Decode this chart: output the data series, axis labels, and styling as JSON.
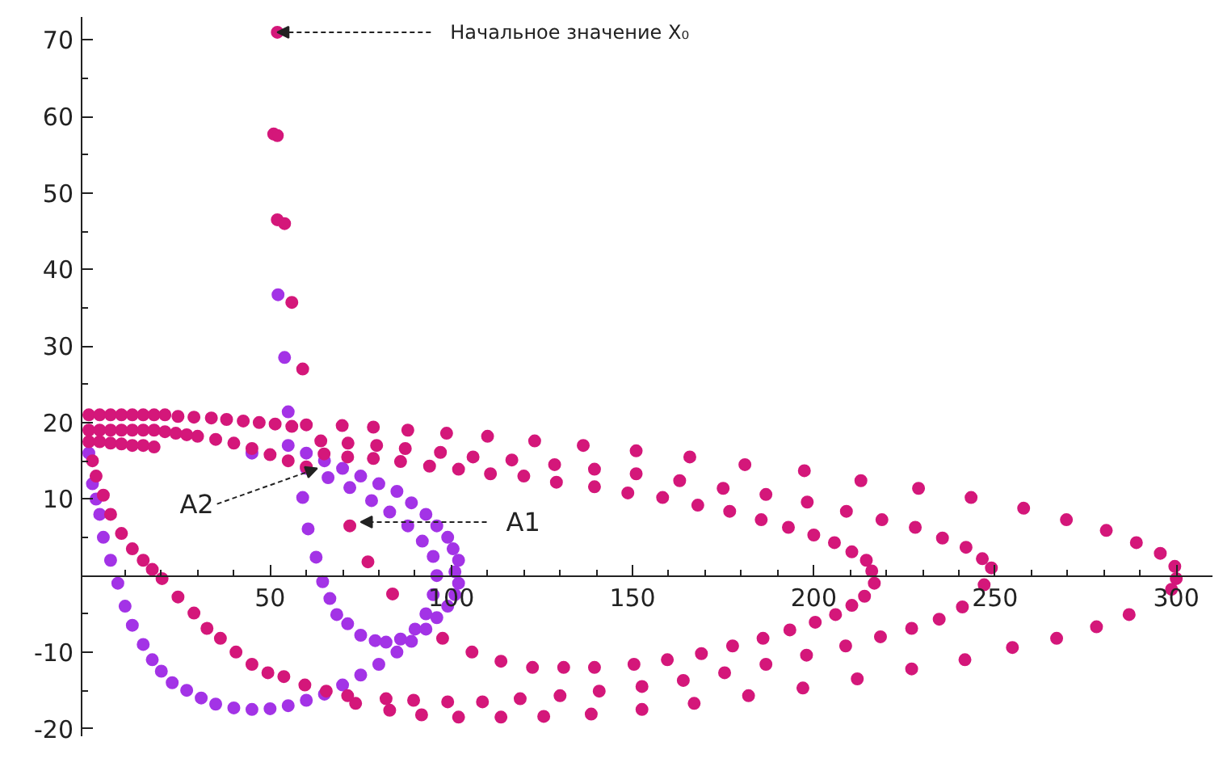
{
  "chart_data": {
    "type": "scatter",
    "marker": "circle",
    "grid": false,
    "xlim": [
      -2,
      310
    ],
    "ylim": [
      -21,
      73
    ],
    "xticks": [
      {
        "value": 10,
        "label": null
      },
      {
        "value": 20,
        "label": null
      },
      {
        "value": 30,
        "label": null
      },
      {
        "value": 40,
        "label": null
      },
      50,
      {
        "value": 60,
        "label": null
      },
      {
        "value": 70,
        "label": null
      },
      {
        "value": 80,
        "label": null
      },
      {
        "value": 90,
        "label": null
      },
      100,
      {
        "value": 110,
        "label": null
      },
      {
        "value": 120,
        "label": null
      },
      {
        "value": 130,
        "label": null
      },
      {
        "value": 140,
        "label": null
      },
      150,
      {
        "value": 160,
        "label": null
      },
      {
        "value": 170,
        "label": null
      },
      {
        "value": 180,
        "label": null
      },
      {
        "value": 190,
        "label": null
      },
      200,
      {
        "value": 210,
        "label": null
      },
      {
        "value": 220,
        "label": null
      },
      {
        "value": 230,
        "label": null
      },
      {
        "value": 240,
        "label": null
      },
      250,
      {
        "value": 260,
        "label": null
      },
      {
        "value": 270,
        "label": null
      },
      {
        "value": 280,
        "label": null
      },
      {
        "value": 290,
        "label": null
      },
      300
    ],
    "yticks": [
      -20,
      {
        "value": -15,
        "label": null
      },
      -10,
      {
        "value": -5,
        "label": null
      },
      {
        "value": 5,
        "label": null
      },
      10,
      {
        "value": 15,
        "label": null
      },
      20,
      {
        "value": 25,
        "label": null
      },
      30,
      {
        "value": 35,
        "label": null
      },
      40,
      {
        "value": 45,
        "label": null
      },
      50,
      {
        "value": 55,
        "label": null
      },
      60,
      {
        "value": 65,
        "label": null
      },
      70
    ],
    "series": [
      {
        "color": "#a333e6",
        "x": [
          52.2,
          54,
          55,
          59,
          60.5,
          62.7,
          64.5,
          66.5,
          68.4,
          71.4,
          75,
          79,
          82,
          86,
          90,
          93,
          95,
          96,
          95,
          92,
          88,
          83,
          78,
          72,
          66,
          60,
          0,
          2,
          1,
          4,
          3,
          8,
          6,
          12,
          10,
          17.5,
          15,
          23,
          20,
          31,
          27,
          40,
          35,
          50,
          45,
          60,
          55,
          70,
          65,
          80,
          75,
          89,
          85,
          96,
          93,
          101,
          99,
          102,
          101,
          102,
          100.5,
          99,
          96,
          93,
          89,
          85,
          80,
          75,
          70,
          65,
          60,
          55,
          45
        ],
        "values": [
          36.7,
          28.5,
          21.4,
          10.2,
          6.1,
          2.4,
          -0.8,
          -3,
          -5.1,
          -6.3,
          -7.8,
          -8.5,
          -8.7,
          -8.3,
          -7,
          -5,
          -2.5,
          0,
          2.5,
          4.5,
          6.5,
          8.3,
          9.8,
          11.5,
          12.8,
          14,
          16,
          10,
          12,
          5,
          8,
          -1,
          2,
          -6.5,
          -4,
          -11,
          -9,
          -14,
          -12.5,
          -16,
          -15,
          -17.3,
          -16.8,
          -17.4,
          -17.5,
          -16.3,
          -17,
          -14.3,
          -15.5,
          -11.6,
          -13,
          -8.6,
          -10,
          -5.5,
          -7,
          -2.5,
          -4,
          -1,
          0.5,
          2,
          3.5,
          5,
          6.5,
          8,
          9.5,
          11,
          12,
          13,
          14,
          15,
          16,
          17,
          16
        ]
      },
      {
        "color": "#d4177a",
        "x": [
          52,
          51,
          52,
          52,
          54,
          56,
          59,
          0,
          3,
          6,
          9,
          12,
          15,
          18,
          21,
          24.6,
          29,
          33.8,
          38,
          42.6,
          47,
          51.4,
          56,
          60,
          69.9,
          78.5,
          88,
          98.7,
          110,
          123,
          136.4,
          151,
          165.8,
          181,
          197.4,
          213,
          228.9,
          243.4,
          257.9,
          269.7,
          280.7,
          289,
          295.6,
          299.6,
          300,
          298.7,
          287,
          278,
          267,
          254.8,
          241.7,
          227,
          212,
          197,
          182,
          167,
          152.6,
          138.6,
          125.5,
          113.7,
          102,
          91.8,
          83,
          73.6,
          0,
          3,
          6,
          9,
          12,
          15,
          18,
          21,
          24,
          27,
          30,
          64,
          71.5,
          79.4,
          87.3,
          97,
          106,
          116.7,
          128.5,
          139.5,
          151,
          163,
          175,
          186.8,
          198.2,
          209,
          218.8,
          228,
          235.5,
          242,
          246.5,
          249,
          247,
          241,
          234.6,
          227,
          218.4,
          208.8,
          198,
          186.8,
          175.4,
          164,
          152.6,
          140.8,
          130,
          119,
          108.6,
          99,
          89.6,
          82,
          0,
          3,
          6,
          9,
          12,
          15,
          18,
          64.9,
          71.4,
          78.5,
          86,
          94,
          102,
          110.8,
          120,
          129,
          139.5,
          148.7,
          158.3,
          168,
          176.8,
          185.5,
          193,
          200,
          205.7,
          210.5,
          214.5,
          216,
          216.7,
          214,
          210.5,
          206,
          200.4,
          193.4,
          186,
          177.6,
          169,
          159.6,
          150.4,
          139.5,
          131,
          122.4,
          113.7,
          105.7,
          97.6,
          83.8,
          77,
          72,
          35,
          40,
          45,
          50,
          55,
          60,
          1,
          2,
          4,
          6,
          9,
          12,
          15,
          17.5,
          20.2,
          24.6,
          29,
          32.6,
          36.3,
          40.6,
          45,
          49.4,
          53.8,
          59.6,
          65.5,
          71.4
        ],
        "values": [
          71,
          57.7,
          57.5,
          46.5,
          46,
          35.7,
          27,
          21,
          21,
          21,
          21,
          21,
          21,
          21,
          21,
          20.8,
          20.7,
          20.6,
          20.4,
          20.2,
          20,
          19.8,
          19.5,
          19.7,
          19.6,
          19.4,
          19,
          18.6,
          18.2,
          17.6,
          17,
          16.3,
          15.5,
          14.5,
          13.7,
          12.4,
          11.4,
          10.2,
          8.8,
          7.3,
          5.9,
          4.3,
          2.9,
          1.2,
          -0.4,
          -1.8,
          -5.1,
          -6.7,
          -8.2,
          -9.4,
          -11,
          -12.2,
          -13.5,
          -14.7,
          -15.7,
          -16.7,
          -17.5,
          -18.1,
          -18.4,
          -18.5,
          -18.5,
          -18.2,
          -17.6,
          -16.7,
          19,
          19,
          19,
          19,
          19,
          19,
          19,
          18.8,
          18.6,
          18.4,
          18.2,
          17.6,
          17.3,
          17,
          16.6,
          16.1,
          15.5,
          15.1,
          14.5,
          13.9,
          13.3,
          12.4,
          11.4,
          10.6,
          9.6,
          8.4,
          7.3,
          6.3,
          4.9,
          3.7,
          2.2,
          1,
          -1.2,
          -4.1,
          -5.7,
          -6.9,
          -8,
          -9.2,
          -10.4,
          -11.6,
          -12.7,
          -13.7,
          -14.5,
          -15.1,
          -15.7,
          -16.1,
          -16.5,
          -16.5,
          -16.3,
          -16.1,
          17.5,
          17.5,
          17.3,
          17.2,
          17,
          17,
          16.8,
          15.9,
          15.5,
          15.3,
          14.9,
          14.3,
          13.9,
          13.3,
          13,
          12.2,
          11.6,
          10.8,
          10.2,
          9.2,
          8.4,
          7.3,
          6.3,
          5.3,
          4.3,
          3.1,
          2,
          0.6,
          -1,
          -2.7,
          -3.9,
          -5.1,
          -6.1,
          -7.1,
          -8.2,
          -9.2,
          -10.2,
          -11,
          -11.6,
          -12,
          -12,
          -12,
          -11.2,
          -10,
          -8.2,
          -2.4,
          1.8,
          6.5,
          17.8,
          17.3,
          16.6,
          15.8,
          15,
          14.2,
          15,
          13,
          10.5,
          8,
          5.5,
          3.5,
          2,
          0.8,
          -0.4,
          -2.8,
          -4.9,
          -6.9,
          -8.2,
          -10,
          -11.6,
          -12.7,
          -13.2,
          -14.3,
          -15.1,
          -15.7
        ]
      }
    ],
    "annotations": [
      {
        "text": "Начальное значение X₀",
        "x": 52,
        "y": 71
      },
      {
        "text": "A1",
        "x": 75,
        "y": 7
      },
      {
        "text": "A2",
        "x": 63,
        "y": 14
      }
    ]
  }
}
